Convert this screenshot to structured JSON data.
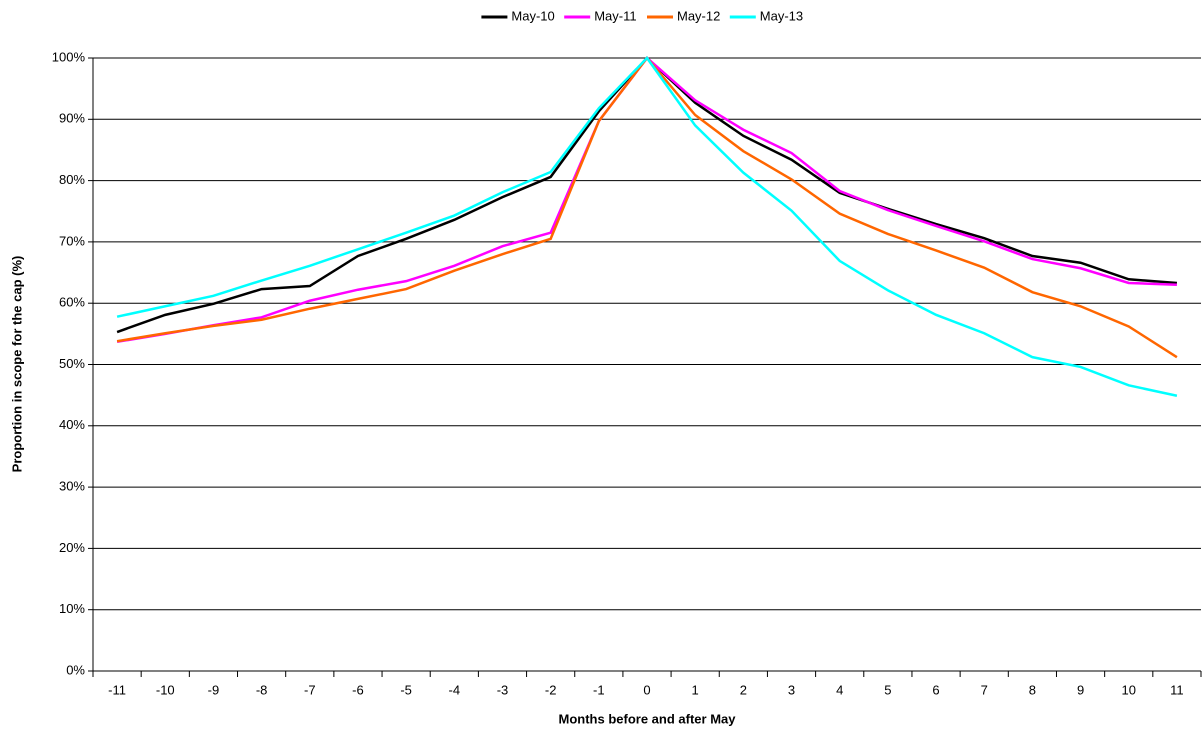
{
  "chart_data": {
    "type": "line",
    "x_label": "Months before and after May",
    "y_label": "Proportion in scope for the cap (%)",
    "categories": [
      "-11",
      "-10",
      "-9",
      "-8",
      "-7",
      "-6",
      "-5",
      "-4",
      "-3",
      "-2",
      "-1",
      "0",
      "1",
      "2",
      "3",
      "4",
      "5",
      "6",
      "7",
      "8",
      "9",
      "10",
      "11"
    ],
    "series": [
      {
        "name": "May-10",
        "color": "#000000",
        "values": [
          55.3,
          58.1,
          59.9,
          62.3,
          62.8,
          67.7,
          70.5,
          73.6,
          77.3,
          80.6,
          91.3,
          100,
          92.7,
          87.3,
          83.4,
          78.0,
          75.4,
          72.9,
          70.6,
          67.7,
          66.6,
          63.9,
          63.3
        ]
      },
      {
        "name": "May-11",
        "color": "#ff00ff",
        "values": [
          53.7,
          55.0,
          56.4,
          57.7,
          60.4,
          62.2,
          63.6,
          66.1,
          69.3,
          71.5,
          89.7,
          100,
          93.1,
          88.3,
          84.5,
          78.3,
          75.2,
          72.6,
          70.1,
          67.2,
          65.7,
          63.3,
          63.0
        ]
      },
      {
        "name": "May-12",
        "color": "#ff6600",
        "values": [
          53.8,
          55.1,
          56.3,
          57.3,
          59.1,
          60.7,
          62.3,
          65.3,
          68.0,
          70.5,
          89.7,
          100,
          90.7,
          84.8,
          80.2,
          74.6,
          71.3,
          68.6,
          65.8,
          61.8,
          59.5,
          56.2,
          51.2
        ]
      },
      {
        "name": "May-13",
        "color": "#00ffff",
        "values": [
          57.8,
          59.5,
          61.2,
          63.7,
          66.1,
          68.8,
          71.5,
          74.3,
          78.1,
          81.4,
          91.8,
          100,
          89.0,
          81.3,
          75.1,
          66.9,
          62.1,
          58.1,
          55.1,
          51.2,
          49.6,
          46.6,
          44.9
        ]
      }
    ],
    "ylim": [
      0,
      100
    ],
    "yticks": [
      {
        "value": 0,
        "label": "0%"
      },
      {
        "value": 10,
        "label": "10%"
      },
      {
        "value": 20,
        "label": "20%"
      },
      {
        "value": 30,
        "label": "30%"
      },
      {
        "value": 40,
        "label": "40%"
      },
      {
        "value": 50,
        "label": "50%"
      },
      {
        "value": 60,
        "label": "60%"
      },
      {
        "value": 70,
        "label": "70%"
      },
      {
        "value": 80,
        "label": "80%"
      },
      {
        "value": 90,
        "label": "90%"
      },
      {
        "value": 100,
        "label": "100%"
      }
    ],
    "grid": true,
    "legend": "top"
  }
}
